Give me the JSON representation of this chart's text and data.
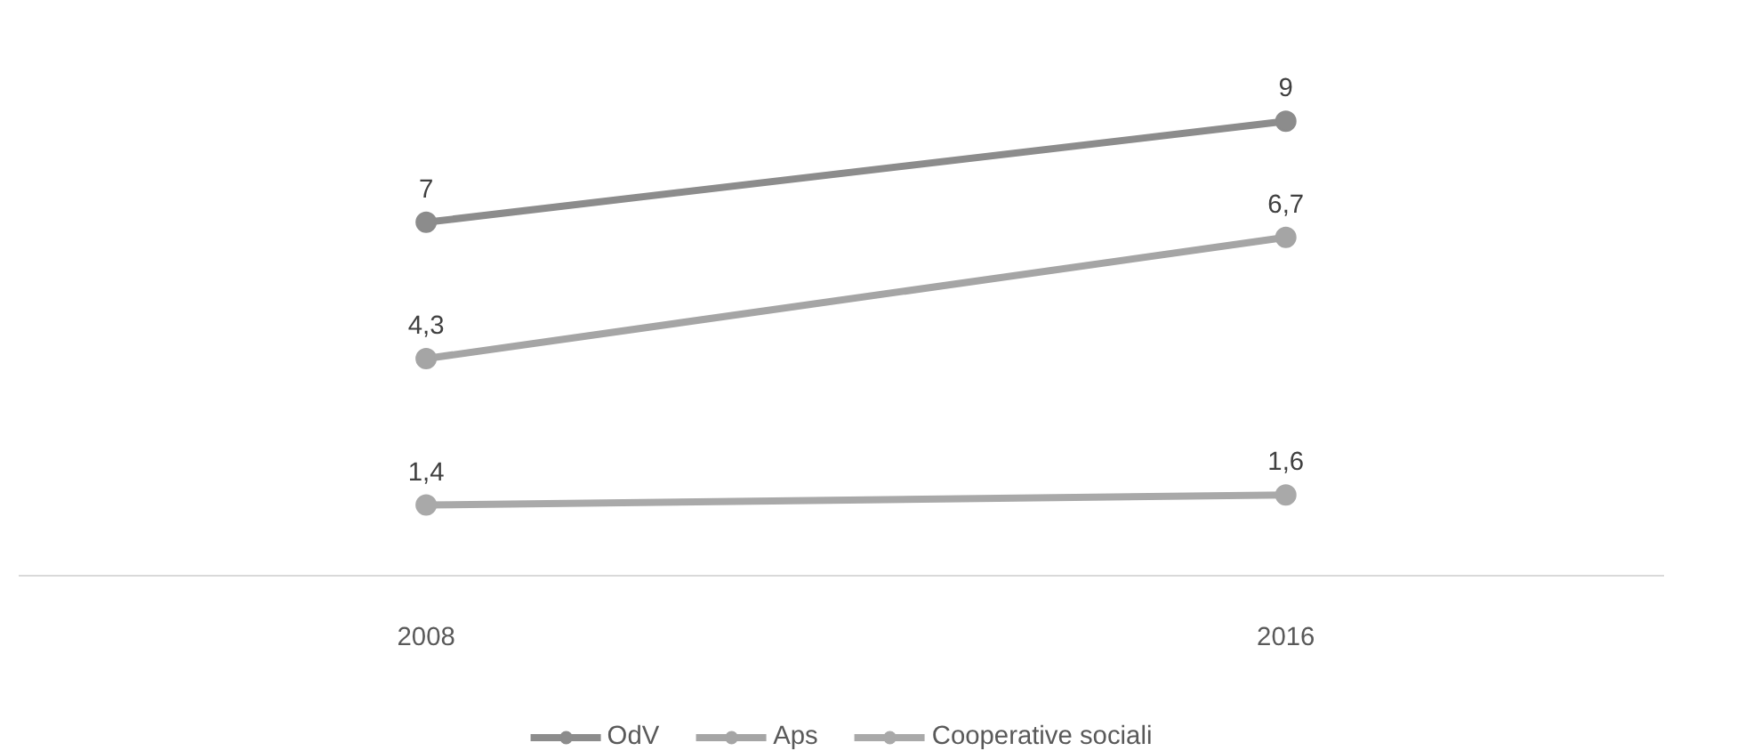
{
  "chart_data": {
    "type": "line",
    "categories": [
      "2008",
      "2016"
    ],
    "marker": "circle",
    "line_style": "solid",
    "legend": "bottom",
    "tick_labels": "x",
    "series": [
      {
        "name": "OdV",
        "color": "#8c8c8c",
        "values": [
          7,
          9
        ],
        "value_labels": [
          "7",
          "9"
        ]
      },
      {
        "name": "Aps",
        "color": "#a5a5a5",
        "values": [
          4.3,
          6.7
        ],
        "value_labels": [
          "4,3",
          "6,7"
        ]
      },
      {
        "name": "Cooperative sociali",
        "color": "#a9a9a9",
        "values": [
          1.4,
          1.6
        ],
        "value_labels": [
          "1,4",
          "1,6"
        ]
      }
    ]
  }
}
